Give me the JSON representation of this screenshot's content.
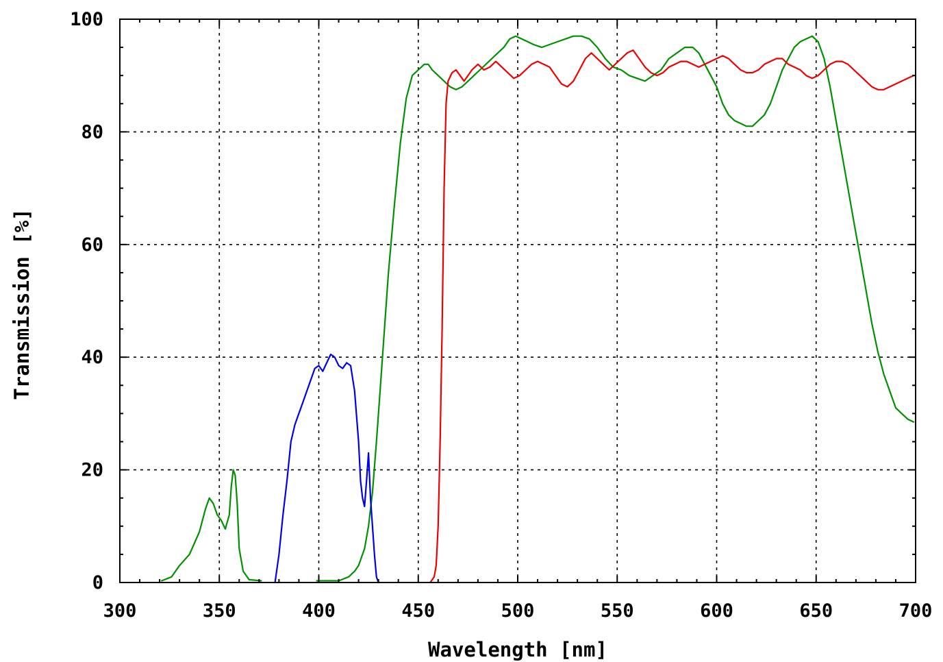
{
  "chart_data": {
    "type": "line",
    "title": "",
    "xlabel": "Wavelength [nm]",
    "ylabel": "Transmission [%]",
    "xlim": [
      300,
      700
    ],
    "ylim": [
      0,
      100
    ],
    "xticks": [
      "300",
      "350",
      "400",
      "450",
      "500",
      "550",
      "600",
      "650",
      "700"
    ],
    "yticks": [
      "0",
      "20",
      "40",
      "60",
      "80",
      "100"
    ],
    "grid": true,
    "legend": "none",
    "series": [
      {
        "color": "#009000",
        "segments": [
          [
            [
              321,
              0.3
            ],
            [
              326,
              1
            ],
            [
              330,
              3
            ],
            [
              335,
              5
            ],
            [
              340,
              9
            ],
            [
              343,
              13
            ],
            [
              345,
              15
            ],
            [
              347,
              14
            ],
            [
              349,
              12
            ],
            [
              351,
              11
            ],
            [
              353,
              9.5
            ],
            [
              355,
              12
            ],
            [
              356,
              17
            ],
            [
              357,
              20
            ],
            [
              358,
              19
            ],
            [
              359,
              14
            ],
            [
              360,
              6
            ],
            [
              362,
              2
            ],
            [
              365,
              0.5
            ],
            [
              371,
              0.3
            ]
          ],
          [
            [
              399,
              0.3
            ],
            [
              410,
              0.3
            ],
            [
              415,
              1
            ],
            [
              418,
              2
            ],
            [
              420,
              3
            ],
            [
              423,
              6
            ],
            [
              425,
              10
            ],
            [
              427,
              16
            ],
            [
              429,
              25
            ],
            [
              431,
              35
            ],
            [
              433,
              45
            ],
            [
              435,
              55
            ],
            [
              438,
              67
            ],
            [
              441,
              78
            ],
            [
              444,
              86
            ],
            [
              447,
              90
            ],
            [
              450,
              91
            ],
            [
              453,
              92
            ],
            [
              455,
              92
            ],
            [
              457,
              91
            ],
            [
              460,
              90
            ],
            [
              463,
              89
            ],
            [
              466,
              88
            ],
            [
              469,
              87.5
            ],
            [
              472,
              88
            ],
            [
              475,
              89
            ],
            [
              478,
              90
            ],
            [
              481,
              91
            ],
            [
              484,
              92
            ],
            [
              487,
              93
            ],
            [
              490,
              94
            ],
            [
              493,
              95
            ],
            [
              496,
              96.5
            ],
            [
              499,
              97
            ],
            [
              502,
              96.5
            ],
            [
              505,
              96
            ],
            [
              508,
              95.5
            ],
            [
              512,
              95
            ],
            [
              516,
              95.5
            ],
            [
              520,
              96
            ],
            [
              524,
              96.5
            ],
            [
              528,
              97
            ],
            [
              532,
              97
            ],
            [
              536,
              96.5
            ],
            [
              540,
              95
            ],
            [
              544,
              93
            ],
            [
              548,
              91.5
            ],
            [
              552,
              91
            ],
            [
              556,
              90
            ],
            [
              560,
              89.5
            ],
            [
              564,
              89
            ],
            [
              568,
              90
            ],
            [
              572,
              91
            ],
            [
              576,
              93
            ],
            [
              580,
              94
            ],
            [
              584,
              95
            ],
            [
              588,
              95
            ],
            [
              591,
              94
            ],
            [
              594,
              92
            ],
            [
              597,
              90
            ],
            [
              600,
              88
            ],
            [
              603,
              85
            ],
            [
              606,
              83
            ],
            [
              609,
              82
            ],
            [
              612,
              81.5
            ],
            [
              615,
              81
            ],
            [
              618,
              81
            ],
            [
              621,
              82
            ],
            [
              624,
              83
            ],
            [
              627,
              85
            ],
            [
              630,
              88
            ],
            [
              633,
              91
            ],
            [
              636,
              93
            ],
            [
              639,
              95
            ],
            [
              642,
              96
            ],
            [
              645,
              96.5
            ],
            [
              648,
              97
            ],
            [
              651,
              96
            ],
            [
              654,
              93
            ],
            [
              657,
              88
            ],
            [
              660,
              82
            ],
            [
              663,
              76
            ],
            [
              666,
              70
            ],
            [
              669,
              64
            ],
            [
              672,
              58
            ],
            [
              675,
              52
            ],
            [
              678,
              46
            ],
            [
              681,
              41
            ],
            [
              684,
              37
            ],
            [
              687,
              34
            ],
            [
              690,
              31
            ],
            [
              693,
              30
            ],
            [
              696,
              29
            ],
            [
              699,
              28.5
            ]
          ]
        ]
      },
      {
        "color": "#0000ee",
        "segments": [
          [
            [
              378,
              0
            ],
            [
              380,
              5
            ],
            [
              382,
              12
            ],
            [
              384,
              18
            ],
            [
              386,
              25
            ],
            [
              388,
              28
            ],
            [
              390,
              30
            ],
            [
              392,
              32
            ],
            [
              394,
              34
            ],
            [
              396,
              36
            ],
            [
              398,
              38
            ],
            [
              400,
              38.5
            ],
            [
              402,
              37.5
            ],
            [
              404,
              39
            ],
            [
              406,
              40.5
            ],
            [
              408,
              40
            ],
            [
              410,
              38.5
            ],
            [
              412,
              38
            ],
            [
              414,
              39
            ],
            [
              416,
              38.5
            ],
            [
              418,
              34
            ],
            [
              420,
              25
            ],
            [
              421,
              18
            ],
            [
              422,
              15
            ],
            [
              423,
              13.5
            ],
            [
              424,
              18
            ],
            [
              425,
              23
            ],
            [
              426,
              15
            ],
            [
              427,
              10
            ],
            [
              428,
              5
            ],
            [
              429,
              1
            ],
            [
              430,
              0
            ]
          ]
        ]
      },
      {
        "color": "#ee0000",
        "segments": [
          [
            [
              456,
              0
            ],
            [
              458,
              1
            ],
            [
              459,
              3
            ],
            [
              460,
              10
            ],
            [
              461,
              25
            ],
            [
              462,
              45
            ],
            [
              463,
              70
            ],
            [
              464,
              85
            ],
            [
              465,
              89
            ],
            [
              467,
              90.5
            ],
            [
              469,
              91
            ],
            [
              471,
              90
            ],
            [
              473,
              89
            ],
            [
              475,
              90
            ],
            [
              477,
              91
            ],
            [
              480,
              92
            ],
            [
              483,
              91
            ],
            [
              486,
              91.5
            ],
            [
              489,
              92.5
            ],
            [
              492,
              91.5
            ],
            [
              495,
              90.5
            ],
            [
              498,
              89.5
            ],
            [
              501,
              90
            ],
            [
              504,
              91
            ],
            [
              507,
              92
            ],
            [
              510,
              92.5
            ],
            [
              513,
              92
            ],
            [
              516,
              91.5
            ],
            [
              519,
              90
            ],
            [
              522,
              88.5
            ],
            [
              525,
              88
            ],
            [
              528,
              89
            ],
            [
              531,
              91
            ],
            [
              534,
              93
            ],
            [
              537,
              94
            ],
            [
              540,
              93
            ],
            [
              543,
              92
            ],
            [
              546,
              91
            ],
            [
              549,
              92
            ],
            [
              552,
              93
            ],
            [
              555,
              94
            ],
            [
              558,
              94.5
            ],
            [
              561,
              93
            ],
            [
              564,
              91.5
            ],
            [
              567,
              90.5
            ],
            [
              570,
              90
            ],
            [
              573,
              90.5
            ],
            [
              576,
              91.5
            ],
            [
              579,
              92
            ],
            [
              582,
              92.5
            ],
            [
              585,
              92.5
            ],
            [
              588,
              92
            ],
            [
              591,
              91.5
            ],
            [
              594,
              92
            ],
            [
              597,
              92.5
            ],
            [
              600,
              93
            ],
            [
              603,
              93.5
            ],
            [
              606,
              93
            ],
            [
              609,
              92
            ],
            [
              612,
              91
            ],
            [
              615,
              90.5
            ],
            [
              618,
              90.5
            ],
            [
              621,
              91
            ],
            [
              624,
              92
            ],
            [
              627,
              92.5
            ],
            [
              630,
              93
            ],
            [
              633,
              93
            ],
            [
              636,
              92
            ],
            [
              639,
              91.5
            ],
            [
              642,
              91
            ],
            [
              645,
              90
            ],
            [
              648,
              89.5
            ],
            [
              651,
              90
            ],
            [
              654,
              91
            ],
            [
              657,
              92
            ],
            [
              660,
              92.5
            ],
            [
              663,
              92.5
            ],
            [
              666,
              92
            ],
            [
              669,
              91
            ],
            [
              672,
              90
            ],
            [
              675,
              89
            ],
            [
              678,
              88
            ],
            [
              681,
              87.5
            ],
            [
              684,
              87.5
            ],
            [
              687,
              88
            ],
            [
              690,
              88.5
            ],
            [
              693,
              89
            ],
            [
              696,
              89.5
            ],
            [
              699,
              90
            ]
          ]
        ]
      }
    ]
  }
}
